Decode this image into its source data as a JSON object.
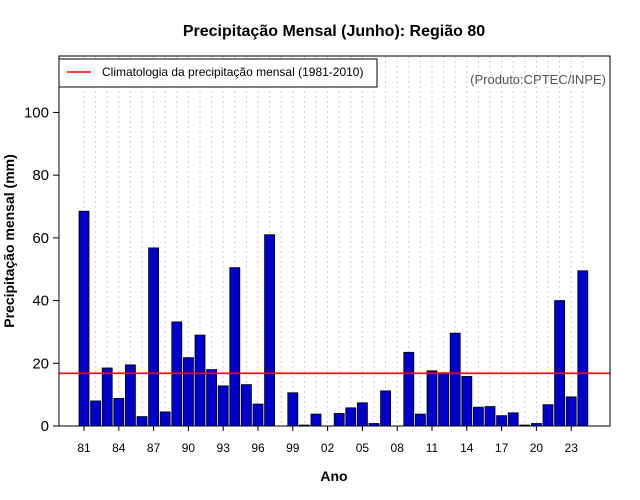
{
  "chart_data": {
    "type": "bar",
    "title": "Precipitação Mensal (Junho): Região 80",
    "xlabel": "Ano",
    "ylabel": "Precipitação mensal (mm)",
    "credit": "(Produto:CPTEC/INPE)",
    "ylim": [
      0,
      118
    ],
    "yticks": [
      0,
      20,
      40,
      60,
      80,
      100
    ],
    "grid": "vertical dotted",
    "legend_position": "top-left",
    "bar_color": "#0000cc",
    "categories": [
      "1981",
      "1982",
      "1983",
      "1984",
      "1985",
      "1986",
      "1987",
      "1988",
      "1989",
      "1990",
      "1991",
      "1992",
      "1993",
      "1994",
      "1995",
      "1996",
      "1997",
      "1998",
      "1999",
      "2000",
      "2001",
      "2002",
      "2003",
      "2004",
      "2005",
      "2006",
      "2007",
      "2008",
      "2009",
      "2010",
      "2011",
      "2012",
      "2013",
      "2014",
      "2015",
      "2016",
      "2017",
      "2018",
      "2019",
      "2020",
      "2021",
      "2022",
      "2023",
      "2024"
    ],
    "xtick_labels": [
      {
        "index": 0,
        "label": "81"
      },
      {
        "index": 3,
        "label": "84"
      },
      {
        "index": 6,
        "label": "87"
      },
      {
        "index": 9,
        "label": "90"
      },
      {
        "index": 12,
        "label": "93"
      },
      {
        "index": 15,
        "label": "96"
      },
      {
        "index": 18,
        "label": "99"
      },
      {
        "index": 21,
        "label": "02"
      },
      {
        "index": 24,
        "label": "05"
      },
      {
        "index": 27,
        "label": "08"
      },
      {
        "index": 30,
        "label": "11"
      },
      {
        "index": 33,
        "label": "14"
      },
      {
        "index": 36,
        "label": "17"
      },
      {
        "index": 39,
        "label": "20"
      },
      {
        "index": 42,
        "label": "23"
      }
    ],
    "values": [
      68.5,
      8.0,
      18.5,
      8.8,
      19.5,
      3.0,
      56.8,
      4.5,
      33.2,
      21.8,
      29.0,
      18.0,
      12.8,
      50.5,
      13.2,
      7.0,
      61.0,
      0,
      10.6,
      0.3,
      3.8,
      0,
      4.0,
      5.8,
      7.4,
      0.8,
      11.2,
      0,
      23.5,
      3.8,
      17.6,
      17.0,
      29.6,
      15.8,
      6.0,
      6.2,
      3.3,
      4.2,
      0.3,
      0.8,
      6.8,
      40.0,
      9.3,
      49.5
    ],
    "climatology": {
      "label": "Climatologia da precipitação mensal (1981-2010)",
      "value": 16.8,
      "color": "#ff0000"
    }
  }
}
